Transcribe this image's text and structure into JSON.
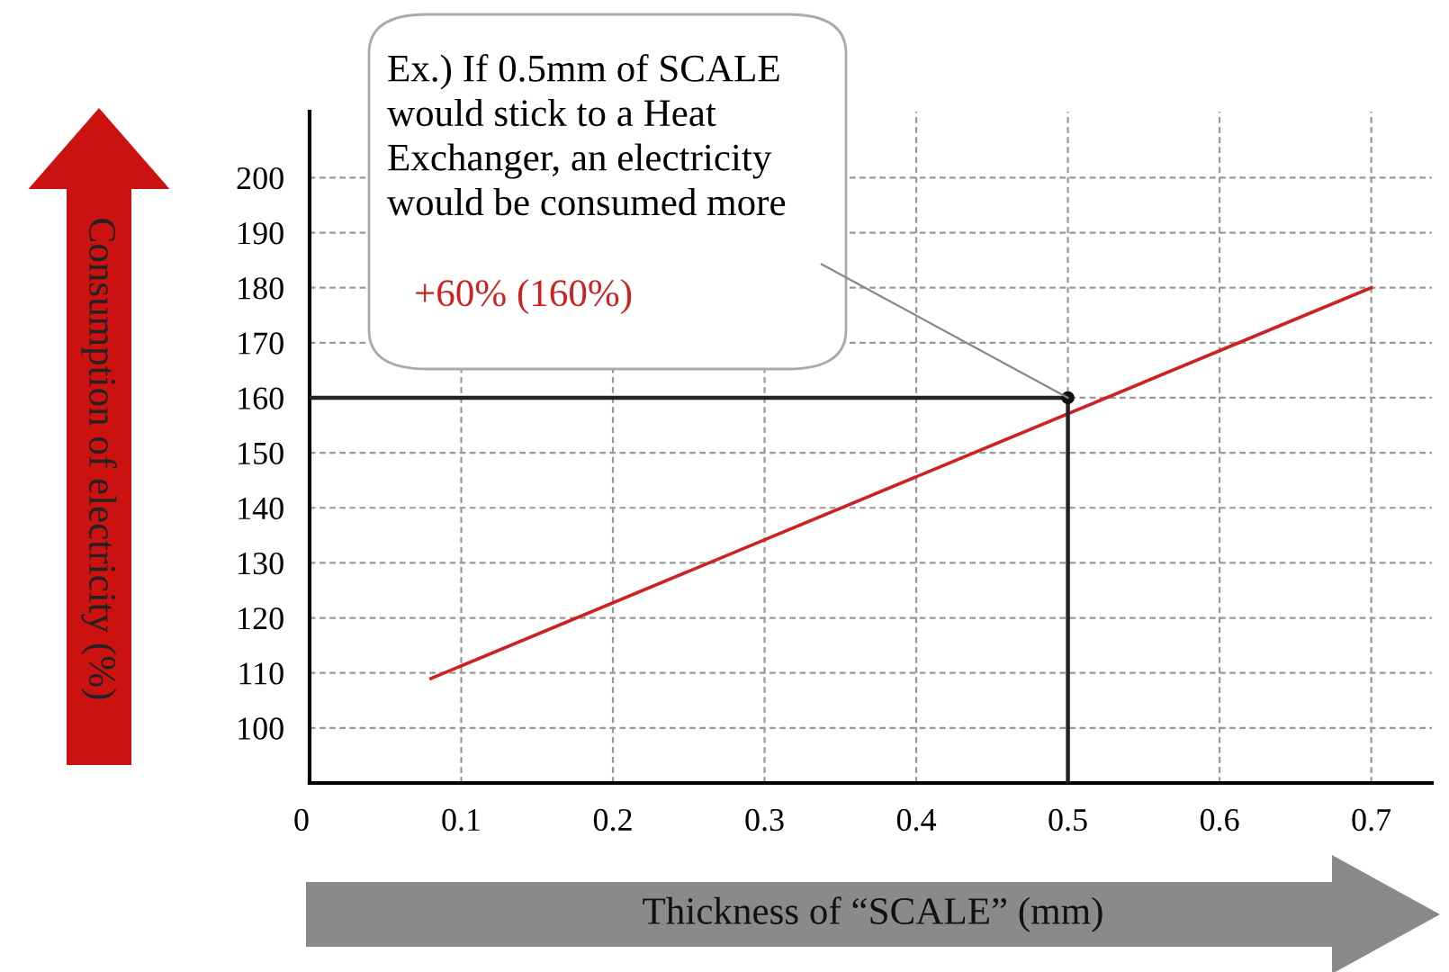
{
  "chart_data": {
    "type": "line",
    "xlabel": "Thickness of “SCALE” (mm)",
    "ylabel": "Consumption of electricity (%)",
    "series": [
      {
        "color": "#cc2222",
        "x": [
          0.08,
          0.7
        ],
        "values": [
          109,
          180
        ]
      },
      {
        "color": "#222222",
        "x": [
          0,
          0.5,
          0.5
        ],
        "values": [
          160,
          160,
          90
        ]
      },
      {
        "type": "scatter",
        "color": "#111111",
        "x": [
          0.5
        ],
        "values": [
          160
        ]
      }
    ],
    "annotations": [
      "Ex.) If 0.5mm of SCALE\nwould stick to a Heat\nExchanger, an electricity\nwould be consumed more",
      "+60% (160%)"
    ],
    "xlim": [
      0,
      0.74
    ],
    "xticks": [
      0,
      0.1,
      0.2,
      0.3,
      0.4,
      0.5,
      0.6,
      0.7
    ],
    "ylim": [
      90,
      212
    ],
    "yticks": [
      {
        "value": 90,
        "label": null
      },
      100,
      110,
      120,
      130,
      140,
      150,
      160,
      170,
      180,
      190,
      200
    ],
    "grid": true
  }
}
